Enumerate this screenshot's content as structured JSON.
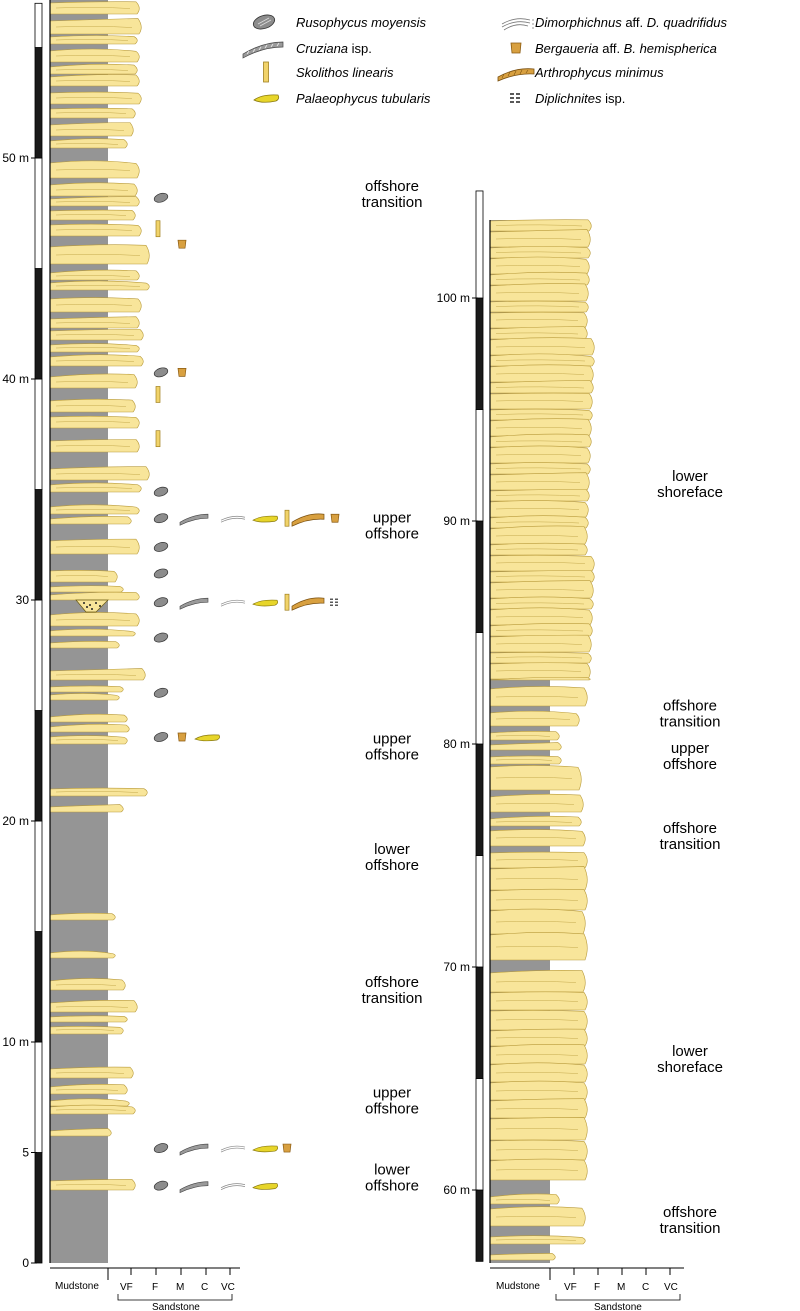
{
  "colors": {
    "sandstone": "#f8e59a",
    "sand_outline": "#b89a3a",
    "mudstone": "#959595",
    "bar_black": "#1a1a1a",
    "bar_white": "#ffffff",
    "trace_gray": "#9a9a9a",
    "trace_yellow": "#e0d020",
    "trace_ochre": "#d8a040"
  },
  "legend": [
    {
      "icon": "rusophycus-icon",
      "italic": "Rusophycus moyensis",
      "roman": ""
    },
    {
      "icon": "cruziana-icon",
      "italic": "Cruziana",
      "roman": " isp."
    },
    {
      "icon": "skolithos-icon",
      "italic": "Skolithos linearis",
      "roman": ""
    },
    {
      "icon": "palaeophycus-icon",
      "italic": "Palaeophycus tubularis",
      "roman": ""
    },
    {
      "icon": "dimorphichnus-icon",
      "italic": "Dimorphichnus",
      "roman": " aff. ",
      "italic2": "D. quadrifidus"
    },
    {
      "icon": "bergaueria-icon",
      "italic": "Bergaueria",
      "roman": " aff. ",
      "italic2": "B. hemispherica"
    },
    {
      "icon": "arthrophycus-icon",
      "italic": "Arthrophycus minimus",
      "roman": ""
    },
    {
      "icon": "diplichnites-icon",
      "italic": "Diplichnites",
      "roman": " isp."
    }
  ],
  "left_column": {
    "scale_ticks": [
      {
        "m": 50,
        "label": "50 m"
      },
      {
        "m": 40,
        "label": "40 m"
      },
      {
        "m": 30,
        "label": "30"
      },
      {
        "m": 20,
        "label": "20 m"
      },
      {
        "m": 10,
        "label": "10 m"
      },
      {
        "m": 5,
        "label": "5"
      },
      {
        "m": 0,
        "label": "0"
      }
    ],
    "environments": [
      {
        "lines": [
          "offshore",
          "transition"
        ],
        "m": 48.5
      },
      {
        "lines": [
          "upper",
          "offshore"
        ],
        "m": 33.5
      },
      {
        "lines": [
          "upper",
          "offshore"
        ],
        "m": 23.5
      },
      {
        "lines": [
          "lower",
          "offshore"
        ],
        "m": 18.5
      },
      {
        "lines": [
          "offshore",
          "transition"
        ],
        "m": 12.5
      },
      {
        "lines": [
          "upper",
          "offshore"
        ],
        "m": 7.5
      },
      {
        "lines": [
          "lower",
          "offshore"
        ],
        "m": 4.0
      }
    ],
    "trace_rows": [
      {
        "m": 48.2,
        "traces": [
          "rusophycus"
        ]
      },
      {
        "m": 46.8,
        "traces": [
          "skolithos"
        ]
      },
      {
        "m": 46.1,
        "traces": [
          "bergaueria"
        ]
      },
      {
        "m": 40.3,
        "traces": [
          "rusophycus",
          "bergaueria"
        ]
      },
      {
        "m": 39.3,
        "traces": [
          "skolithos"
        ]
      },
      {
        "m": 37.3,
        "traces": [
          "skolithos"
        ]
      },
      {
        "m": 34.9,
        "traces": [
          "rusophycus"
        ]
      },
      {
        "m": 33.7,
        "traces": [
          "rusophycus",
          "cruziana",
          "dimorphichnus",
          "palaeophycus",
          "skolithos",
          "arthrophycus",
          "bergaueria"
        ]
      },
      {
        "m": 32.4,
        "traces": [
          "rusophycus"
        ]
      },
      {
        "m": 31.2,
        "traces": [
          "rusophycus"
        ]
      },
      {
        "m": 29.9,
        "traces": [
          "rusophycus",
          "cruziana",
          "dimorphichnus",
          "palaeophycus",
          "skolithos",
          "arthrophycus",
          "diplichnites"
        ]
      },
      {
        "m": 28.3,
        "traces": [
          "rusophycus"
        ]
      },
      {
        "m": 25.8,
        "traces": [
          "rusophycus"
        ]
      },
      {
        "m": 23.8,
        "traces": [
          "rusophycus",
          "bergaueria",
          "palaeophycus"
        ]
      },
      {
        "m": 5.2,
        "traces": [
          "rusophycus",
          "cruziana",
          "dimorphichnus",
          "palaeophycus",
          "bergaueria"
        ]
      },
      {
        "m": 3.5,
        "traces": [
          "rusophycus",
          "cruziana",
          "dimorphichnus",
          "palaeophycus"
        ]
      }
    ]
  },
  "right_column": {
    "scale_ticks": [
      {
        "m": 100,
        "label": "100 m"
      },
      {
        "m": 90,
        "label": "90 m"
      },
      {
        "m": 80,
        "label": "80 m"
      },
      {
        "m": 70,
        "label": "70 m"
      },
      {
        "m": 60,
        "label": "60 m"
      }
    ],
    "environments": [
      {
        "lines": [
          "lower",
          "shoreface"
        ],
        "m": 91.8
      },
      {
        "lines": [
          "offshore",
          "transition"
        ],
        "m": 81.5
      },
      {
        "lines": [
          "upper",
          "offshore"
        ],
        "m": 79.6
      },
      {
        "lines": [
          "offshore",
          "transition"
        ],
        "m": 76.0
      },
      {
        "lines": [
          "lower",
          "shoreface"
        ],
        "m": 66.0
      },
      {
        "lines": [
          "offshore",
          "transition"
        ],
        "m": 58.8
      }
    ]
  },
  "grain_axis": {
    "labels": [
      "Mudstone",
      "VF",
      "F",
      "M",
      "C",
      "VC"
    ],
    "group_label": "Sandstone"
  }
}
